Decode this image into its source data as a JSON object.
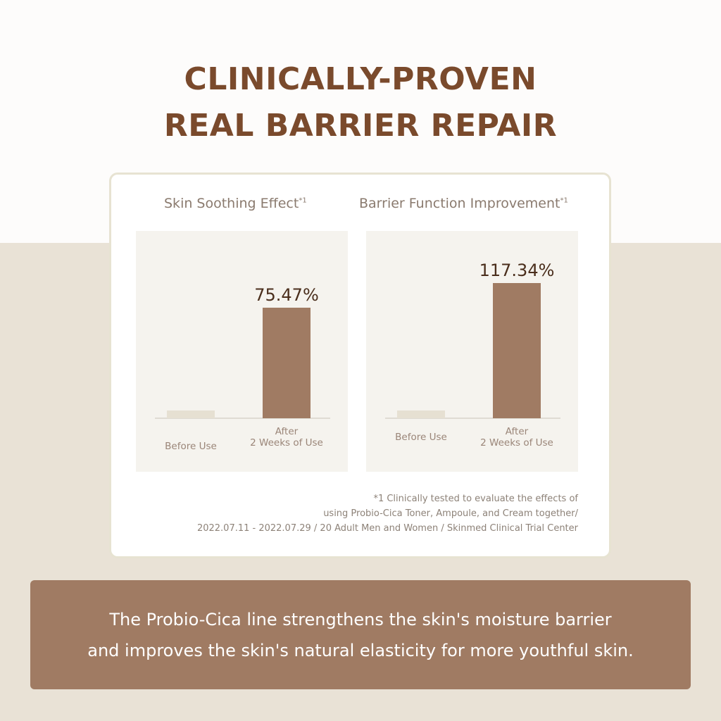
{
  "title": {
    "line1": "CLINICALLY-PROVEN",
    "line2": "REAL BARRIER REPAIR"
  },
  "colors": {
    "title": "#7a4a2c",
    "bar_after": "#a07b63",
    "bar_before": "#e6e0d2",
    "banner": "#a07b63",
    "background_lower": "#e9e2d6"
  },
  "chart_data": [
    {
      "type": "bar",
      "title": "Skin Soothing Effect",
      "title_mark": "*1",
      "categories": [
        "Before Use",
        "After 2 Weeks of Use"
      ],
      "category_lines": [
        [
          "Before Use"
        ],
        [
          "After",
          "2 Weeks of Use"
        ]
      ],
      "values": [
        0,
        75.47
      ],
      "data_labels": [
        "",
        "75.47%"
      ],
      "grid": false
    },
    {
      "type": "bar",
      "title": "Barrier Function Improvement",
      "title_mark": "*1",
      "categories": [
        "Before Use",
        "After 2 Weeks of Use"
      ],
      "category_lines": [
        [
          "Before Use"
        ],
        [
          "After",
          "2 Weeks of Use"
        ]
      ],
      "values": [
        0,
        117.34
      ],
      "data_labels": [
        "",
        "117.34%"
      ],
      "grid": false
    }
  ],
  "footnote": {
    "line1": "*1 Clinically tested to evaluate the effects of",
    "line2": "using Probio-Cica Toner, Ampoule, and Cream together/",
    "line3": "2022.07.11 - 2022.07.29 / 20 Adult Men and Women / Skinmed Clinical Trial Center"
  },
  "banner": {
    "line1": "The Probio-Cica line strengthens the skin's moisture barrier",
    "line2": "and improves the skin's natural elasticity for more youthful skin."
  }
}
